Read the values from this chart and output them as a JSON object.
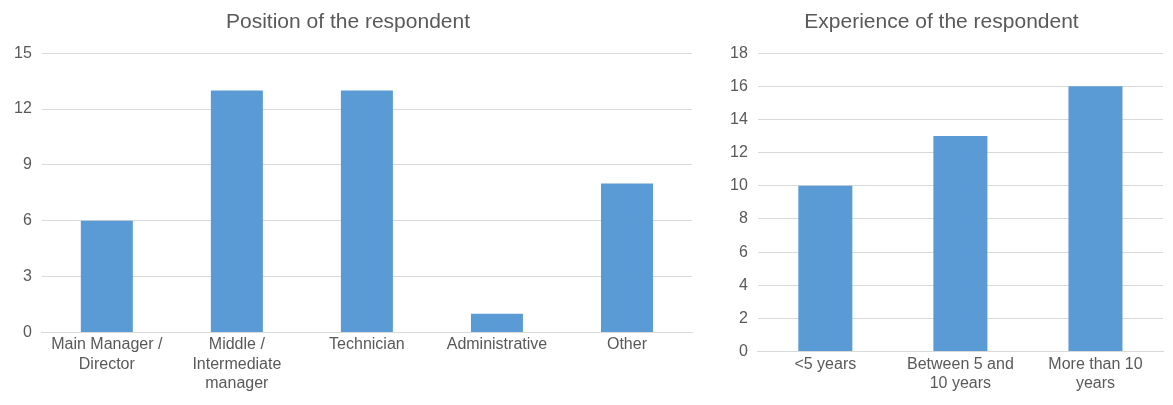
{
  "chart_data": [
    {
      "type": "bar",
      "title": "Position of the respondent",
      "categories": [
        "Main Manager / Director",
        "Middle / Intermediate manager",
        "Technician",
        "Administrative",
        "Other"
      ],
      "values": [
        6,
        13,
        13,
        1,
        8
      ],
      "color": "#5b9bd5",
      "ylim": [
        0,
        15
      ],
      "yticks": [
        0,
        3,
        6,
        9,
        12,
        15
      ],
      "grid": "y",
      "legend": false
    },
    {
      "type": "bar",
      "title": "Experience of the respondent",
      "categories": [
        "<5 years",
        "Between 5 and 10 years",
        "More than 10 years"
      ],
      "values": [
        10,
        13,
        16
      ],
      "color": "#5b9bd5",
      "ylim": [
        0,
        18
      ],
      "yticks": [
        0,
        2,
        4,
        6,
        8,
        10,
        12,
        14,
        16,
        18
      ],
      "grid": "y",
      "legend": false
    }
  ]
}
